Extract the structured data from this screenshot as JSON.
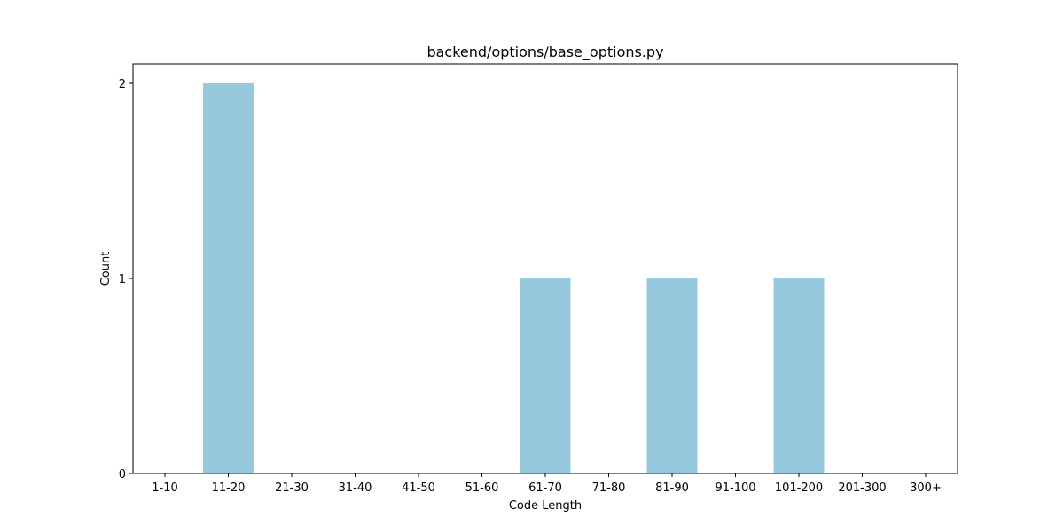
{
  "chart_data": {
    "type": "bar",
    "title": "backend/options/base_options.py",
    "xlabel": "Code Length",
    "ylabel": "Count",
    "categories": [
      "1-10",
      "11-20",
      "21-30",
      "31-40",
      "41-50",
      "51-60",
      "61-70",
      "71-80",
      "81-90",
      "91-100",
      "101-200",
      "201-300",
      "300+"
    ],
    "values": [
      0,
      2,
      0,
      0,
      0,
      0,
      1,
      0,
      1,
      0,
      1,
      0,
      0
    ],
    "yticks": [
      "0",
      "1",
      "2"
    ],
    "ylim": [
      0,
      2.1
    ],
    "bar_color": "#96c9dc",
    "grid": false,
    "legend": "none"
  }
}
